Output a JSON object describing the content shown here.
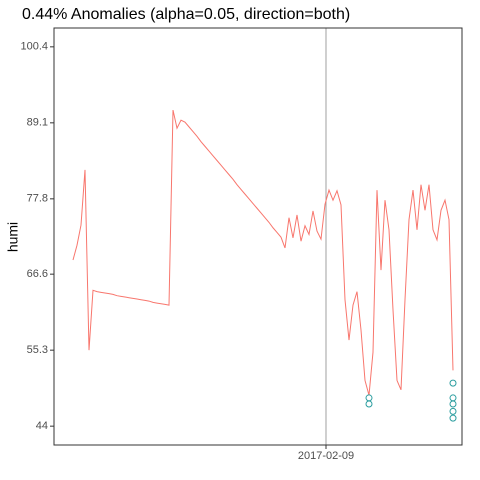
{
  "chart_data": {
    "type": "line",
    "title": "0.44% Anomalies (alpha=0.05, direction=both)",
    "ylabel": "humi",
    "categories": [
      null,
      null,
      null,
      null,
      null,
      null,
      null,
      null,
      null,
      null,
      null,
      null,
      null,
      null,
      null,
      null,
      null,
      null,
      null,
      null,
      null,
      null,
      null,
      null,
      null,
      null,
      null,
      null,
      null,
      null,
      null,
      null,
      null,
      null,
      null,
      null,
      null,
      null,
      null,
      null,
      null,
      null,
      null,
      null,
      null,
      null,
      null,
      null,
      null,
      null,
      null,
      null,
      null,
      null,
      null,
      null,
      null,
      null,
      null,
      null,
      null,
      null,
      null,
      null,
      null,
      null,
      null,
      null,
      null,
      null,
      null,
      null,
      null,
      null,
      null,
      null,
      null,
      null,
      null,
      null,
      null,
      null,
      null,
      null,
      null,
      null,
      null,
      null,
      null,
      null,
      null,
      null,
      null,
      null,
      null,
      null
    ],
    "series": [
      {
        "color": "#F8766D",
        "values": [
          68.7,
          70.9,
          73.9,
          82.1,
          55.3,
          64.2,
          64.0,
          63.9,
          63.8,
          63.7,
          63.6,
          63.4,
          63.3,
          63.2,
          63.1,
          63.0,
          62.9,
          62.8,
          62.7,
          62.6,
          62.4,
          62.3,
          62.2,
          62.1,
          62.0,
          91.0,
          88.3,
          89.5,
          89.2,
          88.5,
          87.8,
          87.1,
          86.3,
          85.6,
          84.9,
          84.2,
          83.5,
          82.8,
          82.1,
          81.4,
          80.7,
          79.9,
          79.2,
          78.5,
          77.8,
          77.1,
          76.4,
          75.7,
          75.0,
          74.3,
          73.5,
          72.8,
          72.1,
          70.5,
          75.0,
          72.0,
          75.4,
          71.5,
          73.8,
          72.5,
          76.0,
          73.0,
          71.8,
          77.0,
          79.1,
          77.6,
          79.0,
          76.9,
          62.8,
          56.8,
          62.0,
          64.0,
          58.3,
          50.8,
          48.6,
          55.0,
          79.1,
          67.2,
          77.6,
          73.2,
          61.3,
          50.8,
          49.4,
          62.8,
          74.7,
          79.1,
          73.2,
          79.9,
          76.1,
          79.9,
          73.2,
          71.7,
          76.1,
          77.6,
          74.7,
          52.3
        ]
      },
      {
        "type": "scatter",
        "color": "#2A9D9F",
        "x": [
          74,
          74,
          95,
          95,
          95,
          95,
          95
        ],
        "values": [
          48.2,
          47.3,
          50.4,
          48.2,
          47.3,
          46.2,
          45.2
        ]
      }
    ],
    "xlim": [
      -4.75,
      97.25
    ],
    "xticks": [
      {
        "value": 63.25,
        "label": "2017-02-09"
      }
    ],
    "ylim": [
      41.2,
      103.2
    ],
    "yticks": [
      44,
      55.3,
      66.6,
      77.8,
      89.1,
      100.4
    ]
  }
}
